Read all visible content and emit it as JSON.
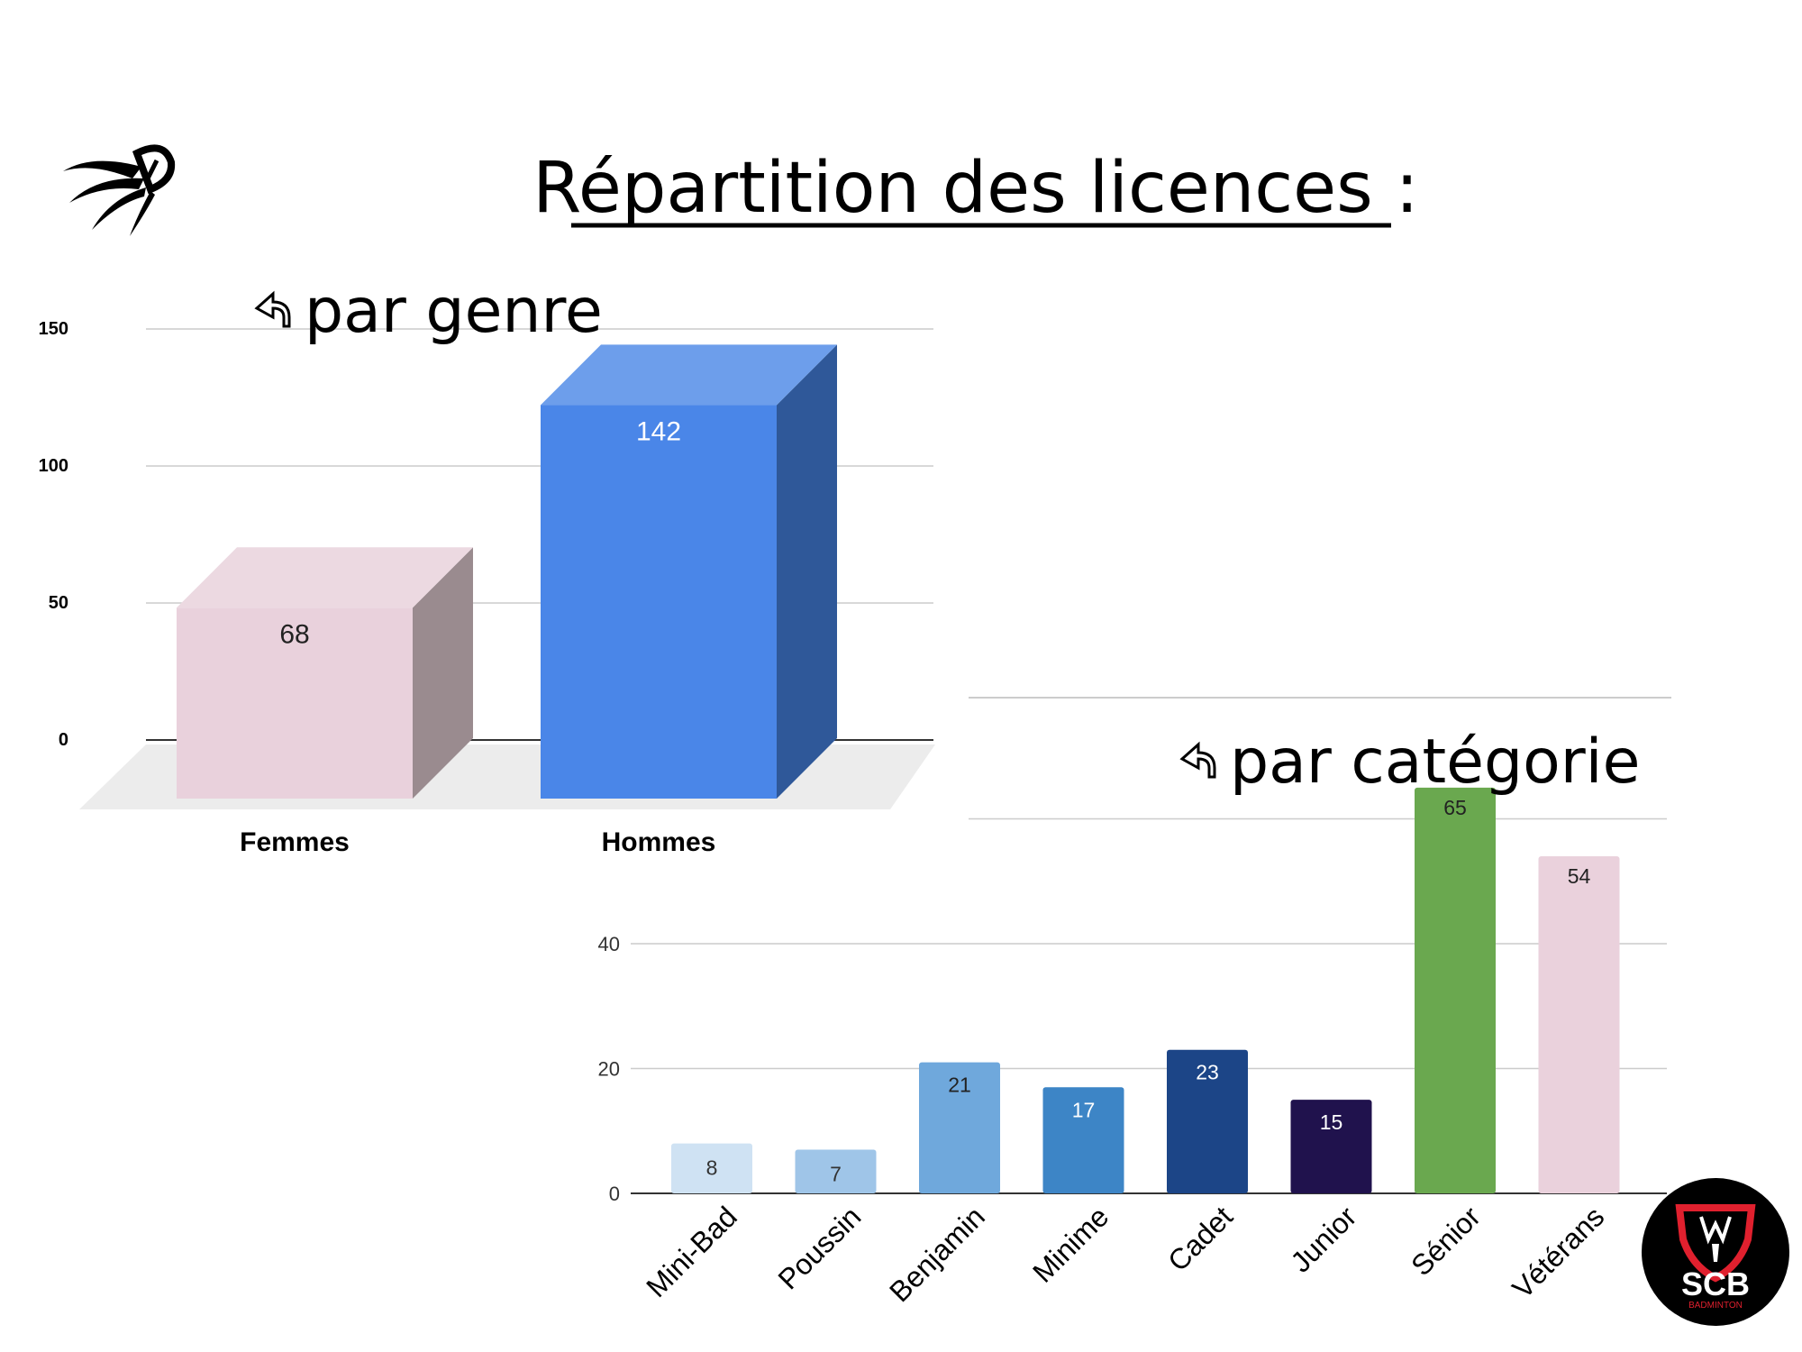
{
  "page": {
    "title": "Répartition des licences :",
    "logo_bottom": {
      "text": "SCB",
      "subtext": "BADMINTON",
      "colors": {
        "background": "#000000",
        "shield": "#e0202e",
        "text": "#ffffff"
      }
    },
    "shuttlecock_icon": "badminton-shuttlecock-icon"
  },
  "chart_data": [
    {
      "type": "bar",
      "subtitle": "par genre",
      "subtitle_icon": "return-arrow-icon",
      "categories": [
        "Femmes",
        "Hommes"
      ],
      "values": [
        68,
        142
      ],
      "data_labels": [
        "68",
        "142"
      ],
      "y_ticks": [
        "0",
        "50",
        "100",
        "150"
      ],
      "ylim": [
        0,
        150
      ],
      "style": "3d",
      "colors": [
        "#e9d1dc",
        "#4a86e8"
      ],
      "side_colors": [
        "#9a8b8f",
        "#2f5899"
      ],
      "top_colors": [
        "#ecd9e1",
        "#6d9eeb"
      ]
    },
    {
      "type": "bar",
      "subtitle": "par catégorie",
      "subtitle_icon": "return-arrow-icon",
      "categories": [
        "Mini-Bad",
        "Poussin",
        "Benjamin",
        "Minime",
        "Cadet",
        "Junior",
        "Sénior",
        "Vétérans"
      ],
      "values": [
        8,
        7,
        21,
        17,
        23,
        15,
        65,
        54
      ],
      "data_labels": [
        "8",
        "7",
        "21",
        "17",
        "23",
        "15",
        "65",
        "54"
      ],
      "y_ticks": [
        "0",
        "20",
        "40"
      ],
      "ylim": [
        0,
        80
      ],
      "colors": [
        "#cfe2f3",
        "#9fc5e8",
        "#6fa8dc",
        "#3d85c6",
        "#1c4587",
        "#20124d",
        "#6aa84f",
        "#ead1dc"
      ],
      "label_colors": [
        "#333333",
        "#333333",
        "#222222",
        "#ffffff",
        "#ffffff",
        "#ffffff",
        "#222222",
        "#222222"
      ]
    }
  ]
}
